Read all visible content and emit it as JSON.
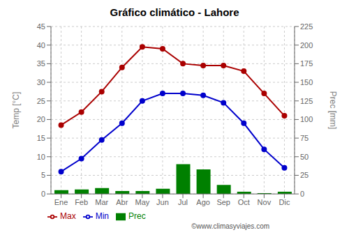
{
  "chart_data": {
    "type": "bar",
    "title": "Gráfico climático - Lahore",
    "categories": [
      "Ene",
      "Feb",
      "Mar",
      "Abr",
      "May",
      "Jun",
      "Jul",
      "Ago",
      "Sep",
      "Oct",
      "Nov",
      "Dic"
    ],
    "series": [
      {
        "name": "Prec",
        "type": "bar",
        "color": "#008000",
        "axis": "y2",
        "values": [
          5,
          6,
          8,
          4,
          4,
          7,
          40,
          33,
          12,
          3,
          1,
          3
        ]
      },
      {
        "name": "Min",
        "type": "line",
        "color": "#0000cc",
        "marker": "circle",
        "values": [
          6,
          9.5,
          14.5,
          19,
          25,
          27,
          27,
          26.5,
          24.5,
          19,
          12,
          7
        ]
      },
      {
        "name": "Max",
        "type": "line",
        "color": "#aa0000",
        "marker": "circle",
        "values": [
          18.5,
          22,
          27.5,
          34,
          39.5,
          39,
          35,
          34.5,
          34.5,
          33,
          27,
          21
        ]
      }
    ],
    "ylabel": "Temp [°C]",
    "y2label": "Prec [mm]",
    "ylim": [
      0,
      45
    ],
    "yticks": [
      0,
      5,
      10,
      15,
      20,
      25,
      30,
      35,
      40,
      45
    ],
    "y2lim": [
      0,
      225
    ],
    "y2ticks": [
      0,
      25,
      50,
      75,
      100,
      125,
      150,
      175,
      200,
      225
    ],
    "grid": true,
    "legend": "bottom",
    "annotations": [
      {
        "text": "©www.climasyviajes.com"
      }
    ]
  }
}
